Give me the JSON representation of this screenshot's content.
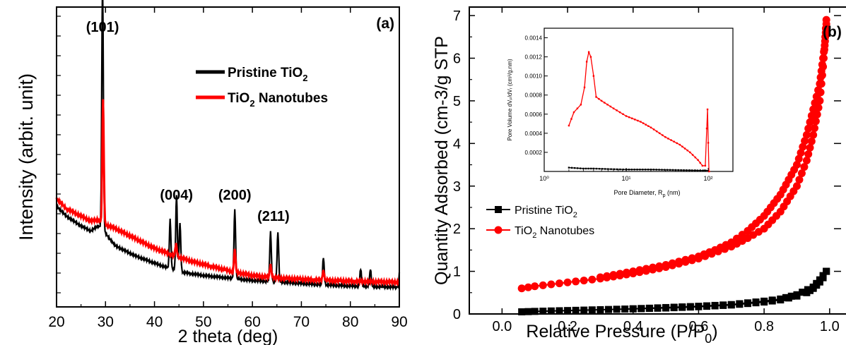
{
  "chart_data": [
    {
      "type": "line",
      "panel_label": "(a)",
      "xlabel": "2 theta (deg)",
      "ylabel": "Intensity (arbit. unit)",
      "xlim": [
        20,
        90
      ],
      "x_ticks": [
        20,
        30,
        40,
        50,
        60,
        70,
        80,
        90
      ],
      "legend_position": "upper-right",
      "series": [
        {
          "name": "Pristine TiO2",
          "name_base": "Pristine TiO",
          "name_sub": "2",
          "color": "#000000",
          "background": [
            [
              20,
              0.33
            ],
            [
              22,
              0.29
            ],
            [
              25,
              0.25
            ],
            [
              27,
              0.23
            ],
            [
              28.5,
              0.25
            ],
            [
              29.2,
              0.24
            ],
            [
              32,
              0.17
            ],
            [
              36,
              0.13
            ],
            [
              40,
              0.1
            ],
            [
              45,
              0.065
            ],
            [
              50,
              0.05
            ],
            [
              55,
              0.04
            ],
            [
              60,
              0.03
            ],
            [
              65,
              0.025
            ],
            [
              70,
              0.018
            ],
            [
              75,
              0.012
            ],
            [
              80,
              0.008
            ],
            [
              85,
              0.005
            ],
            [
              90,
              0.003
            ]
          ],
          "peaks": [
            [
              29.4,
              1.0
            ],
            [
              43.2,
              0.2
            ],
            [
              44.5,
              0.31
            ],
            [
              45.2,
              0.2
            ],
            [
              56.4,
              0.28
            ],
            [
              63.7,
              0.2
            ],
            [
              65.2,
              0.2
            ],
            [
              74.5,
              0.11
            ],
            [
              82.1,
              0.07
            ],
            [
              84.1,
              0.07
            ],
            [
              90.1,
              0.07
            ]
          ]
        },
        {
          "name": "TiO2 Nanotubes",
          "name_base": "TiO",
          "name_sub": "2",
          "name_suffix": " Nanotubes",
          "color": "#ff0000",
          "background": [
            [
              20,
              0.36
            ],
            [
              22,
              0.32
            ],
            [
              25,
              0.29
            ],
            [
              27,
              0.27
            ],
            [
              28.5,
              0.275
            ],
            [
              29.3,
              0.26
            ],
            [
              32,
              0.24
            ],
            [
              36,
              0.2
            ],
            [
              40,
              0.16
            ],
            [
              44,
              0.13
            ],
            [
              48,
              0.105
            ],
            [
              52,
              0.085
            ],
            [
              56,
              0.065
            ],
            [
              60,
              0.05
            ],
            [
              65,
              0.04
            ],
            [
              70,
              0.035
            ],
            [
              75,
              0.03
            ],
            [
              80,
              0.027
            ],
            [
              85,
              0.025
            ],
            [
              90,
              0.023
            ]
          ],
          "peaks": [
            [
              29.5,
              0.5
            ],
            [
              44.4,
              0.05
            ],
            [
              56.4,
              0.09
            ],
            [
              63.7,
              0.05
            ],
            [
              74.5,
              0.04
            ]
          ]
        }
      ],
      "annotations": [
        {
          "text": "(101)",
          "x": 29.4
        },
        {
          "text": "(004)",
          "x": 44.5
        },
        {
          "text": "(200)",
          "x": 56.4
        },
        {
          "text": "(211)",
          "x": 64.3
        }
      ]
    },
    {
      "type": "line",
      "panel_label": "(b)",
      "xlabel_base": "Relative Pressure (P/P",
      "xlabel_sub": "0",
      "xlabel_close": ")",
      "ylabel": "Quantity Adsorbed (cm-3/g STP",
      "xlim": [
        -0.1,
        1.05
      ],
      "ylim": [
        0,
        7.2
      ],
      "x_ticks": [
        0.0,
        0.2,
        0.4,
        0.6,
        0.8,
        1.0
      ],
      "x_tick_labels": [
        "0.0",
        "0.2",
        "0.4",
        "0.6",
        "0.8",
        "1.0"
      ],
      "y_ticks": [
        0,
        1,
        2,
        3,
        4,
        5,
        6,
        7
      ],
      "legend_position": "middle-left",
      "series": [
        {
          "name": "Pristine TiO2",
          "name_base": "Pristine TiO",
          "name_sub": "2",
          "color": "#000000",
          "marker": "square",
          "adsorption": [
            [
              0.06,
              0.05
            ],
            [
              0.1,
              0.06
            ],
            [
              0.2,
              0.08
            ],
            [
              0.3,
              0.1
            ],
            [
              0.4,
              0.12
            ],
            [
              0.5,
              0.14
            ],
            [
              0.6,
              0.17
            ],
            [
              0.7,
              0.21
            ],
            [
              0.8,
              0.28
            ],
            [
              0.85,
              0.33
            ],
            [
              0.9,
              0.42
            ],
            [
              0.93,
              0.5
            ],
            [
              0.95,
              0.6
            ],
            [
              0.97,
              0.75
            ],
            [
              0.98,
              0.85
            ],
            [
              0.99,
              1.0
            ]
          ],
          "desorption": [
            [
              0.99,
              1.0
            ],
            [
              0.97,
              0.8
            ],
            [
              0.95,
              0.63
            ],
            [
              0.9,
              0.45
            ],
            [
              0.85,
              0.35
            ],
            [
              0.8,
              0.3
            ],
            [
              0.7,
              0.22
            ],
            [
              0.6,
              0.18
            ],
            [
              0.5,
              0.15
            ],
            [
              0.4,
              0.12
            ]
          ]
        },
        {
          "name": "TiO2 Nanotubes",
          "name_base": "TiO",
          "name_sub": "2",
          "name_suffix": " Nanotubes",
          "color": "#ff0000",
          "marker": "circle",
          "adsorption": [
            [
              0.06,
              0.6
            ],
            [
              0.1,
              0.65
            ],
            [
              0.2,
              0.74
            ],
            [
              0.3,
              0.83
            ],
            [
              0.4,
              0.95
            ],
            [
              0.5,
              1.1
            ],
            [
              0.6,
              1.3
            ],
            [
              0.7,
              1.58
            ],
            [
              0.75,
              1.78
            ],
            [
              0.8,
              2.0
            ],
            [
              0.85,
              2.4
            ],
            [
              0.9,
              3.0
            ],
            [
              0.93,
              3.6
            ],
            [
              0.95,
              4.2
            ],
            [
              0.97,
              5.0
            ],
            [
              0.98,
              5.8
            ],
            [
              0.99,
              6.8
            ]
          ],
          "desorption": [
            [
              0.99,
              6.9
            ],
            [
              0.985,
              6.3
            ],
            [
              0.97,
              5.4
            ],
            [
              0.95,
              4.8
            ],
            [
              0.93,
              4.2
            ],
            [
              0.9,
              3.5
            ],
            [
              0.85,
              2.8
            ],
            [
              0.8,
              2.3
            ],
            [
              0.75,
              1.95
            ],
            [
              0.7,
              1.68
            ],
            [
              0.65,
              1.5
            ],
            [
              0.6,
              1.35
            ],
            [
              0.5,
              1.15
            ],
            [
              0.4,
              1.0
            ],
            [
              0.3,
              0.86
            ]
          ]
        }
      ]
    },
    {
      "type": "line",
      "panel": "inset",
      "xlabel_base": "Pore Diameter, R",
      "xlabel_sub": "p",
      "xlabel_close": " (nm)",
      "ylabel": "Pore Volume dVₚ/dVᵣ (cm³/g.nm)",
      "x_scale": "log",
      "xlim": [
        1,
        200
      ],
      "ylim": [
        0,
        0.0015
      ],
      "x_tick_labels": [
        "10⁰",
        "10¹",
        "10²"
      ],
      "y_ticks": [
        0.0002,
        0.0004,
        0.0006,
        0.0008,
        0.001,
        0.0012,
        0.0014
      ],
      "y_tick_labels": [
        "0.0002",
        "0.0004",
        "0.0006",
        "0.0008",
        "0.0010",
        "0.0012",
        "0.0014"
      ],
      "series": [
        {
          "color": "#ff0000",
          "points": [
            [
              2.0,
              0.00048
            ],
            [
              2.3,
              0.00062
            ],
            [
              2.8,
              0.0007
            ],
            [
              3.1,
              0.00088
            ],
            [
              3.3,
              0.00115
            ],
            [
              3.5,
              0.00125
            ],
            [
              3.7,
              0.0012
            ],
            [
              4.0,
              0.001
            ],
            [
              4.3,
              0.00078
            ],
            [
              5.0,
              0.00074
            ],
            [
              7.0,
              0.00066
            ],
            [
              10.0,
              0.00058
            ],
            [
              15.0,
              0.00052
            ],
            [
              20.0,
              0.00046
            ],
            [
              30.0,
              0.00036
            ],
            [
              45.0,
              0.00028
            ],
            [
              60.0,
              0.0002
            ],
            [
              75.0,
              0.00012
            ],
            [
              85.0,
              6e-05
            ],
            [
              92.0,
              6e-05
            ],
            [
              96.0,
              0.00045
            ],
            [
              98.0,
              0.00065
            ],
            [
              100.0,
              0.0003
            ],
            [
              102.0,
              0.0
            ],
            [
              106.0,
              0.0
            ]
          ]
        },
        {
          "color": "#000000",
          "points": [
            [
              2.0,
              4e-05
            ],
            [
              3.0,
              3e-05
            ],
            [
              4.0,
              3e-05
            ],
            [
              6.0,
              2.5e-05
            ],
            [
              10.0,
              2e-05
            ],
            [
              20.0,
              2e-05
            ],
            [
              40.0,
              1.5e-05
            ],
            [
              80.0,
              1e-05
            ],
            [
              100.0,
              1e-05
            ]
          ]
        }
      ]
    }
  ]
}
